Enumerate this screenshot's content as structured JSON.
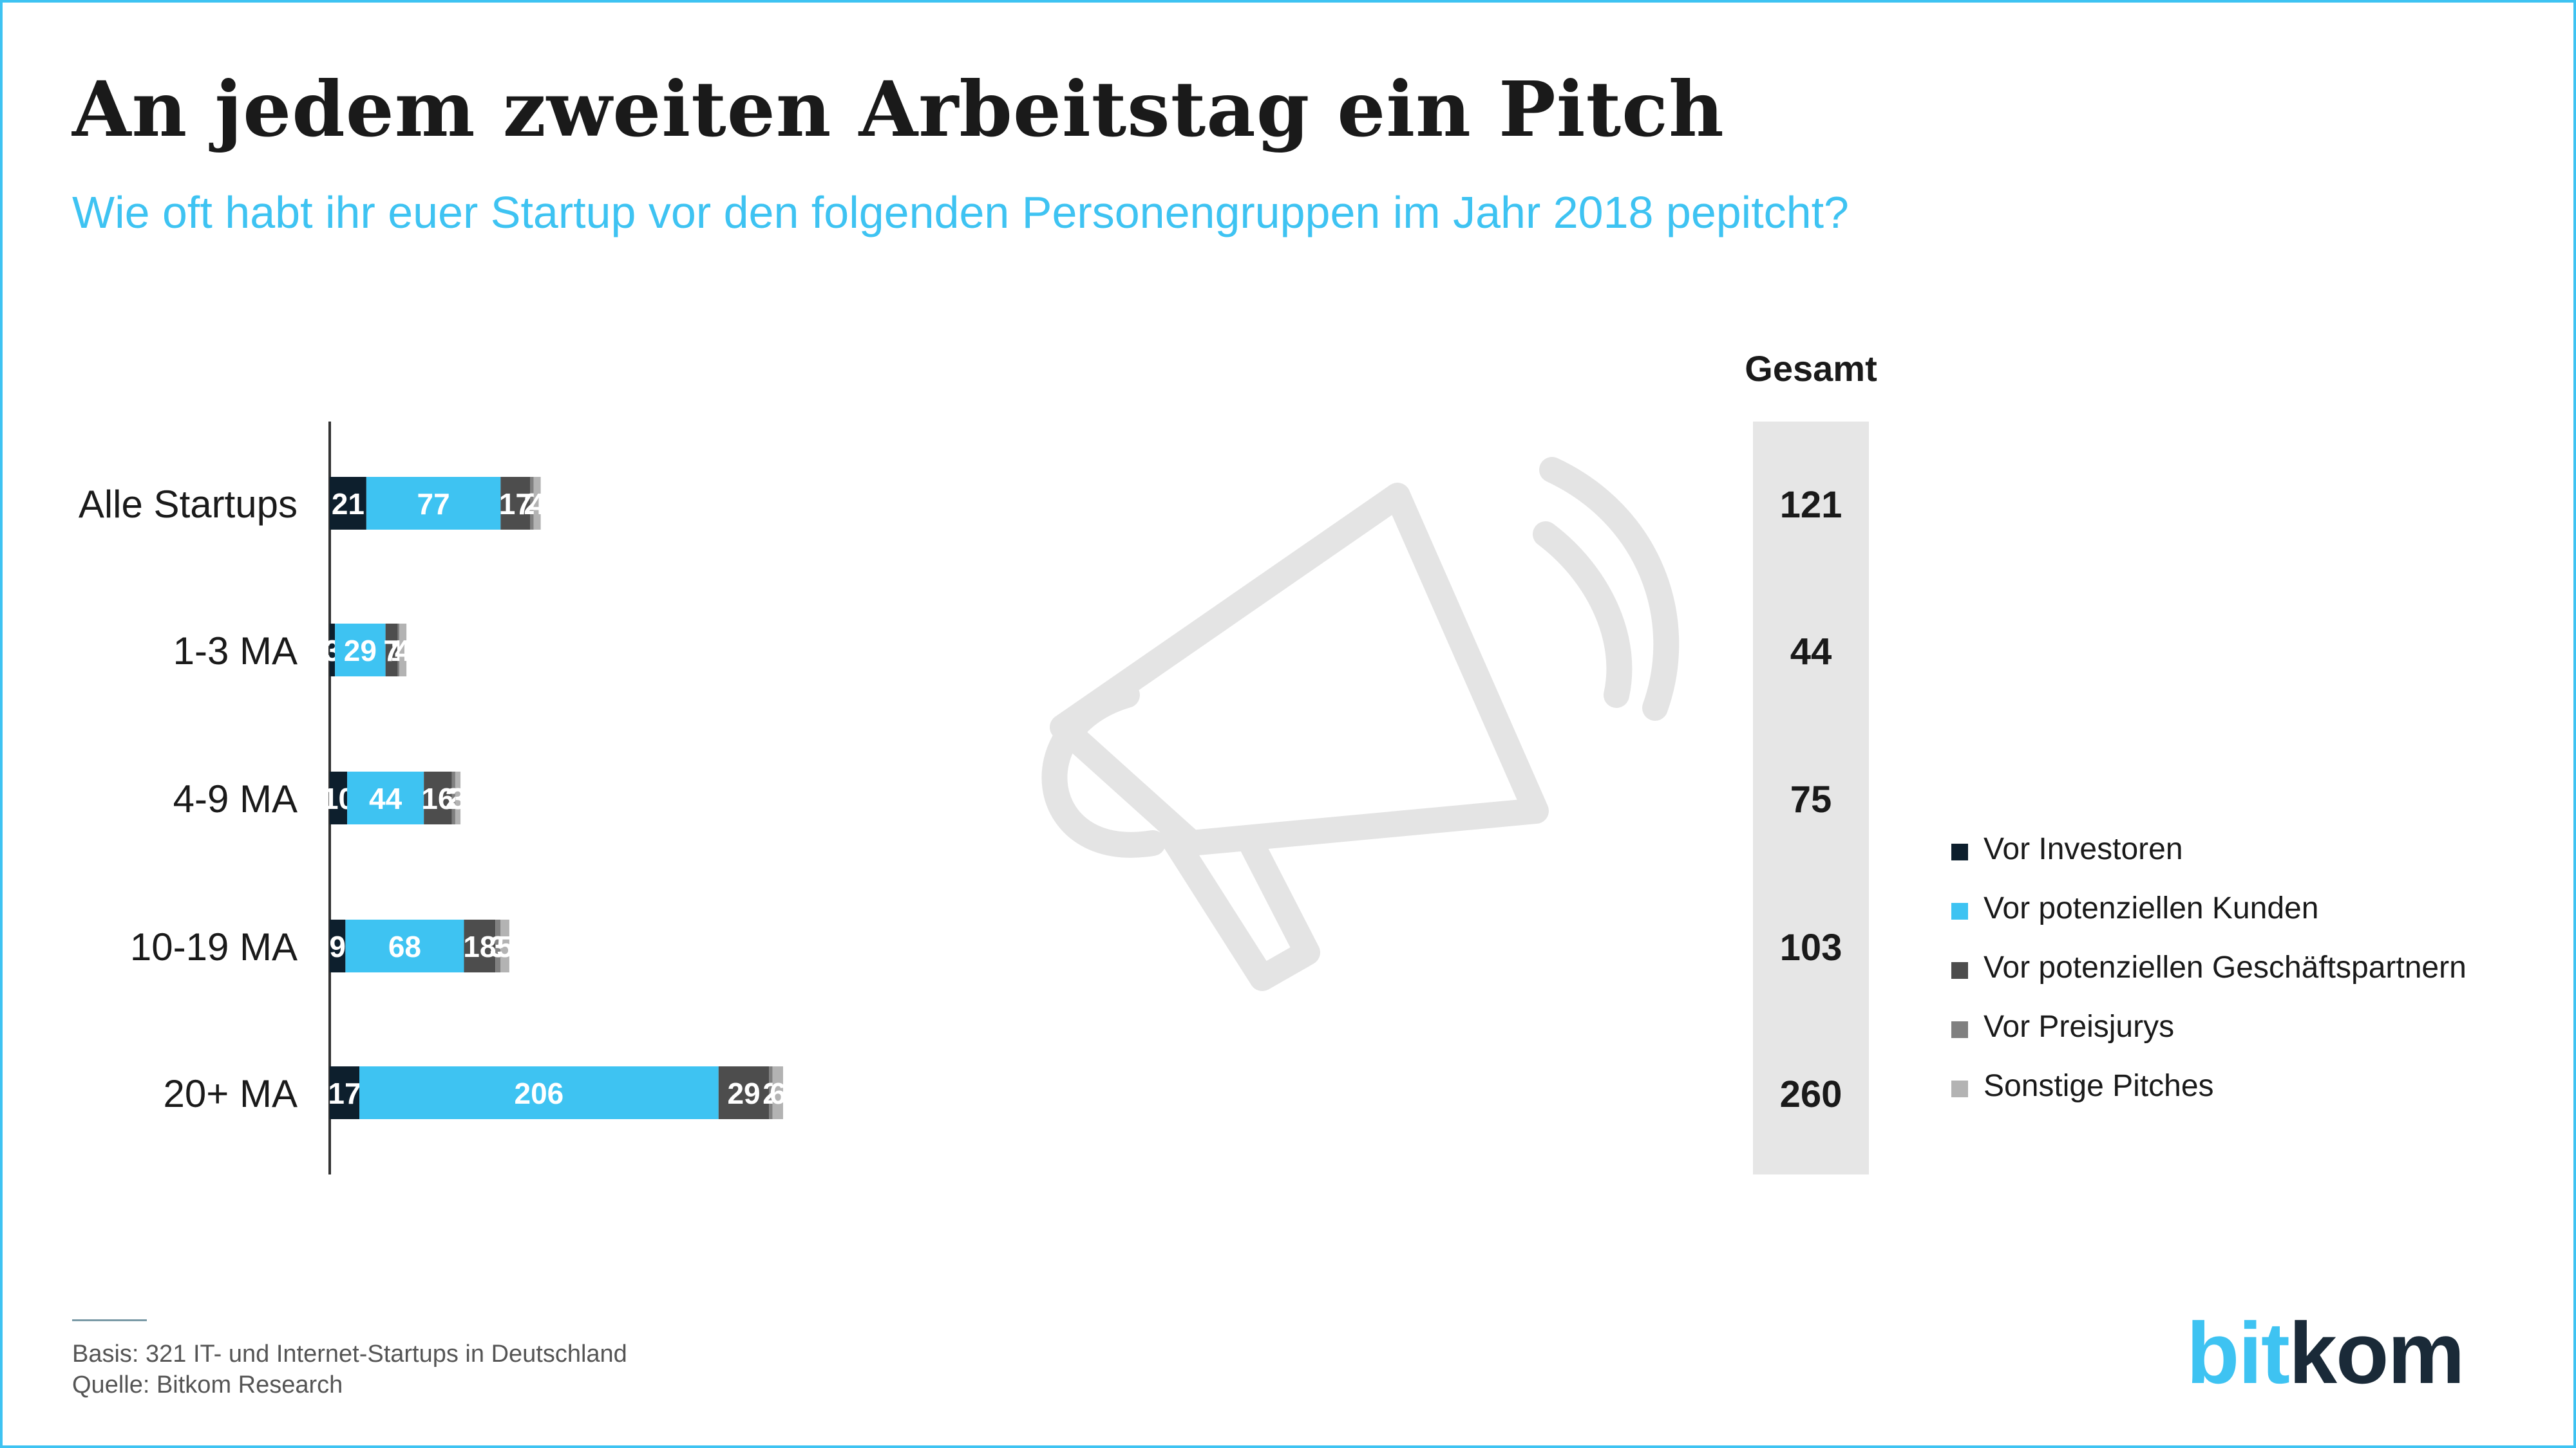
{
  "title": "An jedem zweiten Arbeitstag ein Pitch",
  "subtitle": "Wie oft habt ihr euer Startup vor den folgenden Personengruppen im Jahr 2018 pepitcht?",
  "footer": {
    "basis": "Basis: 321 IT- und Internet-Startups in Deutschland",
    "source": "Quelle: Bitkom Research"
  },
  "logo": {
    "part1": "bit",
    "part2": "kom"
  },
  "colors": {
    "accent": "#3ec3f2",
    "total_panel": "#e6e6e6"
  },
  "background_icon": "megaphone-icon",
  "chart_data": {
    "type": "bar",
    "orientation": "horizontal",
    "stacked": true,
    "total_header": "Gesamt",
    "categories": [
      "Alle Startups",
      "1-3 MA",
      "4-9 MA",
      "10-19 MA",
      "20+ MA"
    ],
    "totals": [
      121,
      44,
      75,
      103,
      260
    ],
    "series": [
      {
        "name": "Vor Investoren",
        "color": "#0d1f2d",
        "label_color": "#ffffff",
        "values": [
          21,
          3,
          10,
          9,
          17
        ]
      },
      {
        "name": "Vor potenziellen Kunden",
        "color": "#3ec3f2",
        "label_color": "#ffffff",
        "values": [
          77,
          29,
          44,
          68,
          206
        ]
      },
      {
        "name": "Vor potenziellen Geschäftspartnern",
        "color": "#4d4d4d",
        "label_color": "#ffffff",
        "values": [
          17,
          7,
          16,
          18,
          29
        ]
      },
      {
        "name": "Vor Preisjurys",
        "color": "#808080",
        "label_color": "#ffffff",
        "values": [
          2,
          1,
          2,
          3,
          2
        ]
      },
      {
        "name": "Sonstige Pitches",
        "color": "#b3b3b3",
        "label_color": "#ffffff",
        "values": [
          4,
          4,
          3,
          5,
          6
        ]
      }
    ],
    "legend_position": "right",
    "grid": false
  }
}
